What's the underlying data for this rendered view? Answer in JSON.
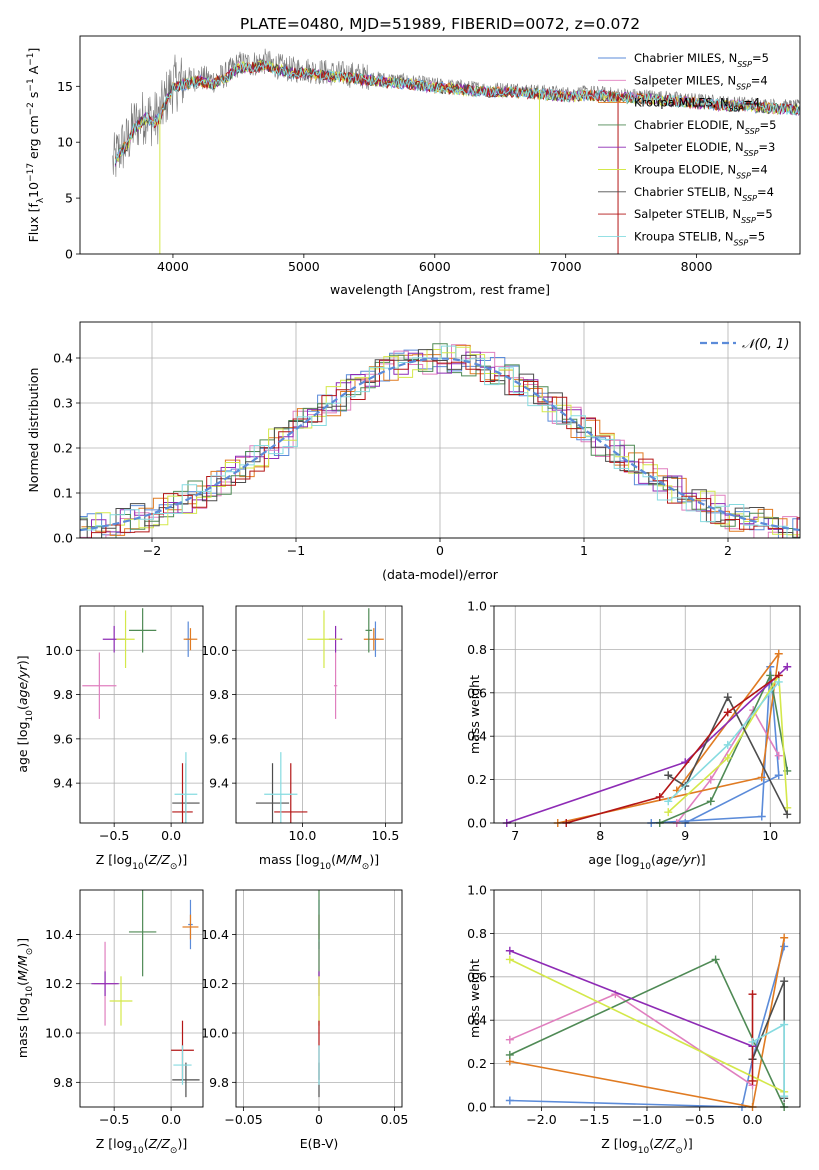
{
  "figure": {
    "title": "PLATE=0480, MJD=51989, FIBERID=0072, z=0.072"
  },
  "colors": {
    "Chabrier MILES": "#5b8bd9",
    "Salpeter MILES": "#e07fbf",
    "Kroupa MILES": "#e07b22",
    "Chabrier ELODIE": "#4f8a55",
    "Salpeter ELODIE": "#8e2bb5",
    "Kroupa ELODIE": "#d4e84a",
    "Chabrier STELIB": "#4d4d4d",
    "Salpeter STELIB": "#b31616",
    "Kroupa STELIB": "#86dbe0",
    "normal": "#5b8bd9"
  },
  "legend1": [
    {
      "model": "Chabrier MILES",
      "text": "Chabrier MILES, N",
      "sub": "SSP",
      "val": "=5"
    },
    {
      "model": "Salpeter MILES",
      "text": "Salpeter MILES, N",
      "sub": "SSP",
      "val": "=4"
    },
    {
      "model": "Kroupa MILES",
      "text": "Kroupa MILES, N",
      "sub": "SSP",
      "val": "=4"
    },
    {
      "model": "Chabrier ELODIE",
      "text": "Chabrier ELODIE, N",
      "sub": "SSP",
      "val": "=5"
    },
    {
      "model": "Salpeter ELODIE",
      "text": "Salpeter ELODIE, N",
      "sub": "SSP",
      "val": "=3"
    },
    {
      "model": "Kroupa ELODIE",
      "text": "Kroupa ELODIE, N",
      "sub": "SSP",
      "val": "=4"
    },
    {
      "model": "Chabrier STELIB",
      "text": "Chabrier STELIB, N",
      "sub": "SSP",
      "val": "=4"
    },
    {
      "model": "Salpeter STELIB",
      "text": "Salpeter STELIB, N",
      "sub": "SSP",
      "val": "=5"
    },
    {
      "model": "Kroupa STELIB",
      "text": "Kroupa STELIB, N",
      "sub": "SSP",
      "val": "=5"
    }
  ],
  "chart_data": [
    {
      "type": "line",
      "title": "PLATE=0480, MJD=51989, FIBERID=0072, z=0.072",
      "xlabel": "wavelength [Angstrom, rest frame]",
      "ylabel": "Flux [fλ10⁻¹⁷ erg cm⁻² s⁻¹ A⁻¹]",
      "xlim": [
        3290,
        8790
      ],
      "ylim": [
        0,
        19.5
      ],
      "xticks": [
        4000,
        5000,
        6000,
        7000,
        8000
      ],
      "yticks": [
        0,
        5,
        10,
        15
      ],
      "data_envelope": {
        "x": [
          3540,
          3600,
          3650,
          3700,
          3750,
          3800,
          3850,
          3900,
          3950,
          4000,
          4100,
          4200,
          4300,
          4400,
          4500,
          4600,
          4700,
          4800,
          4900,
          5000,
          5200,
          5400,
          5600,
          5800,
          6000,
          6200,
          6400,
          6600,
          6800,
          7000,
          7200,
          7400,
          7600,
          7800,
          8000,
          8200,
          8400,
          8600,
          8800
        ],
        "y": [
          8.0,
          9.5,
          10.0,
          11.5,
          12.0,
          12.5,
          12.0,
          12.5,
          14.0,
          15.2,
          15.5,
          15.8,
          15.5,
          16.0,
          17.0,
          17.0,
          17.2,
          16.8,
          16.5,
          16.5,
          16.2,
          16.0,
          15.7,
          15.5,
          15.2,
          15.0,
          14.8,
          14.8,
          14.6,
          14.4,
          14.5,
          14.3,
          14.2,
          14.0,
          13.8,
          13.6,
          13.5,
          13.3,
          13.2
        ]
      }
    },
    {
      "type": "histogram",
      "xlabel": "(data-model)/error",
      "ylabel": "Normed distribution",
      "xlim": [
        -2.5,
        2.5
      ],
      "ylim": [
        0,
        0.48
      ],
      "xticks": [
        -2,
        -1,
        0,
        1,
        2
      ],
      "yticks": [
        0.0,
        0.1,
        0.2,
        0.3,
        0.4
      ],
      "legend": "𝒩(0, 1)",
      "reference_curve": "normal(0,1)"
    },
    {
      "type": "errorbar",
      "xlabel": "Z [log10(Z/Z⊙)]",
      "ylabel": "age  [log10(age/yr)]",
      "xlim": [
        -0.8,
        0.28
      ],
      "ylim": [
        9.22,
        10.2
      ],
      "xticks": [
        -0.5,
        0.0
      ],
      "yticks": [
        9.4,
        9.6,
        9.8,
        10.0
      ],
      "points": [
        {
          "model": "Chabrier MILES",
          "x": 0.15,
          "y": 10.05,
          "xerr": 0.02,
          "yerr": 0.08
        },
        {
          "model": "Salpeter MILES",
          "x": -0.63,
          "y": 9.84,
          "xerr": 0.15,
          "yerr": 0.15
        },
        {
          "model": "Kroupa MILES",
          "x": 0.17,
          "y": 10.05,
          "xerr": 0.06,
          "yerr": 0.05
        },
        {
          "model": "Chabrier ELODIE",
          "x": -0.25,
          "y": 10.09,
          "xerr": 0.12,
          "yerr": 0.1
        },
        {
          "model": "Salpeter ELODIE",
          "x": -0.5,
          "y": 10.05,
          "xerr": 0.1,
          "yerr": 0.06
        },
        {
          "model": "Kroupa ELODIE",
          "x": -0.4,
          "y": 10.05,
          "xerr": 0.08,
          "yerr": 0.13
        },
        {
          "model": "Chabrier STELIB",
          "x": 0.13,
          "y": 9.31,
          "xerr": 0.12,
          "yerr": 0.18
        },
        {
          "model": "Salpeter STELIB",
          "x": 0.1,
          "y": 9.27,
          "xerr": 0.09,
          "yerr": 0.22
        },
        {
          "model": "Kroupa STELIB",
          "x": 0.13,
          "y": 9.35,
          "xerr": 0.1,
          "yerr": 0.19
        }
      ]
    },
    {
      "type": "errorbar",
      "xlabel": "mass [log10(M/M⊙)]",
      "ylabel": "",
      "xlim": [
        9.6,
        10.6
      ],
      "ylim": [
        9.22,
        10.2
      ],
      "xticks": [
        10.0,
        10.5
      ],
      "yticks": [
        9.4,
        9.6,
        9.8,
        10.0
      ],
      "points": [
        {
          "model": "Chabrier MILES",
          "x": 10.44,
          "y": 10.05,
          "xerr": 0.02,
          "yerr": 0.08
        },
        {
          "model": "Salpeter MILES",
          "x": 10.2,
          "y": 9.84,
          "xerr": 0.01,
          "yerr": 0.15
        },
        {
          "model": "Kroupa MILES",
          "x": 10.43,
          "y": 10.05,
          "xerr": 0.06,
          "yerr": 0.05
        },
        {
          "model": "Chabrier ELODIE",
          "x": 10.4,
          "y": 10.09,
          "xerr": 0.02,
          "yerr": 0.1
        },
        {
          "model": "Salpeter ELODIE",
          "x": 10.2,
          "y": 10.05,
          "xerr": 0.04,
          "yerr": 0.06
        },
        {
          "model": "Kroupa ELODIE",
          "x": 10.13,
          "y": 10.05,
          "xerr": 0.1,
          "yerr": 0.13
        },
        {
          "model": "Chabrier STELIB",
          "x": 9.82,
          "y": 9.31,
          "xerr": 0.1,
          "yerr": 0.18
        },
        {
          "model": "Salpeter STELIB",
          "x": 9.93,
          "y": 9.27,
          "xerr": 0.1,
          "yerr": 0.22
        },
        {
          "model": "Kroupa STELIB",
          "x": 9.87,
          "y": 9.35,
          "xerr": 0.1,
          "yerr": 0.19
        }
      ]
    },
    {
      "type": "line",
      "xlabel": "age  [log10(age/yr)]",
      "ylabel": "mass weight",
      "xlim": [
        6.75,
        10.35
      ],
      "ylim": [
        0,
        1.0
      ],
      "xticks": [
        7,
        8,
        9,
        10
      ],
      "yticks": [
        0.0,
        0.2,
        0.4,
        0.6,
        0.8,
        1.0
      ],
      "series": [
        {
          "model": "Chabrier MILES",
          "points": [
            [
              8.6,
              0.0
            ],
            [
              9.9,
              0.03
            ],
            [
              10.0,
              0.72
            ],
            [
              10.1,
              0.22
            ],
            [
              9.0,
              0.0
            ]
          ]
        },
        {
          "model": "Salpeter MILES",
          "points": [
            [
              8.9,
              0.0
            ],
            [
              9.3,
              0.2
            ],
            [
              9.8,
              0.52
            ],
            [
              10.1,
              0.31
            ]
          ]
        },
        {
          "model": "Kroupa MILES",
          "points": [
            [
              7.5,
              0.0
            ],
            [
              9.9,
              0.21
            ],
            [
              10.1,
              0.78
            ],
            [
              8.9,
              0.15
            ]
          ]
        },
        {
          "model": "Chabrier ELODIE",
          "points": [
            [
              8.7,
              0.0
            ],
            [
              9.3,
              0.1
            ],
            [
              10.0,
              0.68
            ],
            [
              10.2,
              0.24
            ]
          ]
        },
        {
          "model": "Salpeter ELODIE",
          "points": [
            [
              6.9,
              0.0
            ],
            [
              9.0,
              0.28
            ],
            [
              10.2,
              0.72
            ]
          ]
        },
        {
          "model": "Kroupa ELODIE",
          "points": [
            [
              8.8,
              0.05
            ],
            [
              9.5,
              0.3
            ],
            [
              10.1,
              0.68
            ],
            [
              10.2,
              0.07
            ]
          ]
        },
        {
          "model": "Chabrier STELIB",
          "points": [
            [
              8.8,
              0.22
            ],
            [
              9.0,
              0.17
            ],
            [
              9.5,
              0.58
            ],
            [
              10.2,
              0.04
            ]
          ]
        },
        {
          "model": "Salpeter STELIB",
          "points": [
            [
              7.6,
              0.0
            ],
            [
              8.7,
              0.12
            ],
            [
              9.5,
              0.51
            ],
            [
              10.1,
              0.68
            ]
          ]
        },
        {
          "model": "Kroupa STELIB",
          "points": [
            [
              8.8,
              0.1
            ],
            [
              9.5,
              0.36
            ],
            [
              10.1,
              0.65
            ]
          ]
        }
      ]
    },
    {
      "type": "errorbar",
      "xlabel": "Z [log10(Z/Z⊙)]",
      "ylabel": "mass [log10(M/M⊙)]",
      "xlim": [
        -0.8,
        0.28
      ],
      "ylim": [
        9.7,
        10.58
      ],
      "xticks": [
        -0.5,
        0.0
      ],
      "yticks": [
        9.8,
        10.0,
        10.2,
        10.4
      ],
      "points": [
        {
          "model": "Chabrier MILES",
          "x": 0.17,
          "y": 10.44,
          "xerr": 0.02,
          "yerr": 0.1
        },
        {
          "model": "Salpeter MILES",
          "x": -0.58,
          "y": 10.2,
          "xerr": 0.1,
          "yerr": 0.17
        },
        {
          "model": "Kroupa MILES",
          "x": 0.17,
          "y": 10.43,
          "xerr": 0.07,
          "yerr": 0.05
        },
        {
          "model": "Chabrier ELODIE",
          "x": -0.25,
          "y": 10.41,
          "xerr": 0.12,
          "yerr": 0.18
        },
        {
          "model": "Salpeter ELODIE",
          "x": -0.58,
          "y": 10.2,
          "xerr": 0.12,
          "yerr": 0.05
        },
        {
          "model": "Kroupa ELODIE",
          "x": -0.44,
          "y": 10.13,
          "xerr": 0.1,
          "yerr": 0.1
        },
        {
          "model": "Chabrier STELIB",
          "x": 0.13,
          "y": 9.81,
          "xerr": 0.12,
          "yerr": 0.07
        },
        {
          "model": "Salpeter STELIB",
          "x": 0.1,
          "y": 9.93,
          "xerr": 0.1,
          "yerr": 0.12
        },
        {
          "model": "Kroupa STELIB",
          "x": 0.1,
          "y": 9.87,
          "xerr": 0.08,
          "yerr": 0.08
        }
      ]
    },
    {
      "type": "errorbar",
      "xlabel": "E(B-V)",
      "ylabel": "",
      "xlim": [
        -0.055,
        0.055
      ],
      "ylim": [
        9.7,
        10.58
      ],
      "xticks": [
        -0.05,
        0.0,
        0.05
      ],
      "yticks": [
        9.8,
        10.0,
        10.2,
        10.4
      ],
      "points": [
        {
          "model": "Chabrier MILES",
          "x": 0.0,
          "y": 10.44,
          "xerr": 0.0,
          "yerr": 0.1
        },
        {
          "model": "Salpeter MILES",
          "x": 0.0,
          "y": 10.2,
          "xerr": 0.0,
          "yerr": 0.17
        },
        {
          "model": "Kroupa MILES",
          "x": 0.0,
          "y": 10.43,
          "xerr": 0.0,
          "yerr": 0.05
        },
        {
          "model": "Chabrier ELODIE",
          "x": 0.0,
          "y": 10.41,
          "xerr": 0.0,
          "yerr": 0.18
        },
        {
          "model": "Salpeter ELODIE",
          "x": 0.0,
          "y": 10.2,
          "xerr": 0.0,
          "yerr": 0.05
        },
        {
          "model": "Kroupa ELODIE",
          "x": 0.0,
          "y": 10.13,
          "xerr": 0.0,
          "yerr": 0.1
        },
        {
          "model": "Chabrier STELIB",
          "x": 0.0,
          "y": 9.81,
          "xerr": 0.0,
          "yerr": 0.07
        },
        {
          "model": "Salpeter STELIB",
          "x": 0.0,
          "y": 9.93,
          "xerr": 0.0,
          "yerr": 0.12
        },
        {
          "model": "Kroupa STELIB",
          "x": 0.0,
          "y": 9.87,
          "xerr": 0.0,
          "yerr": 0.08
        }
      ]
    },
    {
      "type": "line",
      "xlabel": "Z [log10(Z/Z⊙)]",
      "ylabel": "mass weight",
      "xlim": [
        -2.45,
        0.45
      ],
      "ylim": [
        0,
        1.0
      ],
      "xticks": [
        -2.0,
        -1.5,
        -1.0,
        -0.5,
        0.0
      ],
      "yticks": [
        0.0,
        0.2,
        0.4,
        0.6,
        0.8,
        1.0
      ],
      "series": [
        {
          "model": "Chabrier MILES",
          "points": [
            [
              -2.3,
              0.03
            ],
            [
              -0.1,
              0.0
            ],
            [
              0.0,
              0.22
            ],
            [
              0.3,
              0.74
            ]
          ]
        },
        {
          "model": "Salpeter MILES",
          "points": [
            [
              -2.3,
              0.31
            ],
            [
              -1.3,
              0.52
            ],
            [
              0.0,
              0.1
            ]
          ]
        },
        {
          "model": "Kroupa MILES",
          "points": [
            [
              -2.3,
              0.21
            ],
            [
              0.0,
              0.0
            ],
            [
              0.3,
              0.78
            ]
          ]
        },
        {
          "model": "Chabrier ELODIE",
          "points": [
            [
              -2.3,
              0.24
            ],
            [
              -0.35,
              0.68
            ],
            [
              0.3,
              0.0
            ]
          ]
        },
        {
          "model": "Salpeter ELODIE",
          "points": [
            [
              -2.3,
              0.72
            ],
            [
              0.0,
              0.28
            ]
          ]
        },
        {
          "model": "Kroupa ELODIE",
          "points": [
            [
              -2.3,
              0.68
            ],
            [
              0.3,
              0.07
            ]
          ]
        },
        {
          "model": "Chabrier STELIB",
          "points": [
            [
              0.0,
              0.22
            ],
            [
              0.3,
              0.58
            ],
            [
              0.3,
              0.04
            ]
          ]
        },
        {
          "model": "Salpeter STELIB",
          "points": [
            [
              0.0,
              0.52
            ],
            [
              0.0,
              0.12
            ]
          ]
        },
        {
          "model": "Kroupa STELIB",
          "points": [
            [
              0.0,
              0.3
            ],
            [
              0.3,
              0.38
            ],
            [
              0.3,
              0.05
            ]
          ]
        }
      ]
    }
  ]
}
